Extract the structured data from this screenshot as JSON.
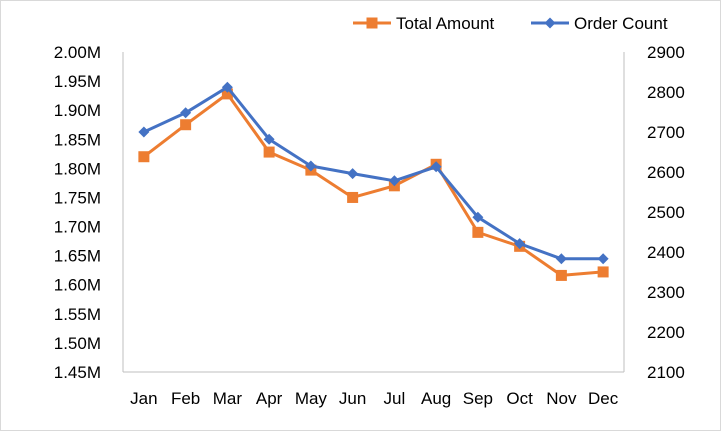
{
  "chart_data": {
    "type": "line",
    "categories": [
      "Jan",
      "Feb",
      "Mar",
      "Apr",
      "May",
      "Jun",
      "Jul",
      "Aug",
      "Sep",
      "Oct",
      "Nov",
      "Dec"
    ],
    "series": [
      {
        "name": "Total Amount",
        "axis": "left",
        "color": "#ed7d31",
        "marker": "square",
        "values": [
          1.82,
          1.875,
          1.928,
          1.828,
          1.797,
          1.75,
          1.77,
          1.807,
          1.69,
          1.666,
          1.616,
          1.622
        ]
      },
      {
        "name": "Order Count",
        "axis": "right",
        "color": "#4472c4",
        "marker": "diamond",
        "values": [
          2700,
          2748,
          2812,
          2682,
          2615,
          2596,
          2578,
          2613,
          2487,
          2421,
          2383,
          2383
        ]
      }
    ],
    "y_left": {
      "min": 1.45,
      "max": 2.0,
      "ticks": [
        "1.45M",
        "1.50M",
        "1.55M",
        "1.60M",
        "1.65M",
        "1.70M",
        "1.75M",
        "1.80M",
        "1.85M",
        "1.90M",
        "1.95M",
        "2.00M"
      ]
    },
    "y_right": {
      "min": 2100,
      "max": 2900,
      "ticks": [
        "2100",
        "2200",
        "2300",
        "2400",
        "2500",
        "2600",
        "2700",
        "2800",
        "2900"
      ]
    },
    "gridlines": false,
    "legend_position": "top-right"
  }
}
